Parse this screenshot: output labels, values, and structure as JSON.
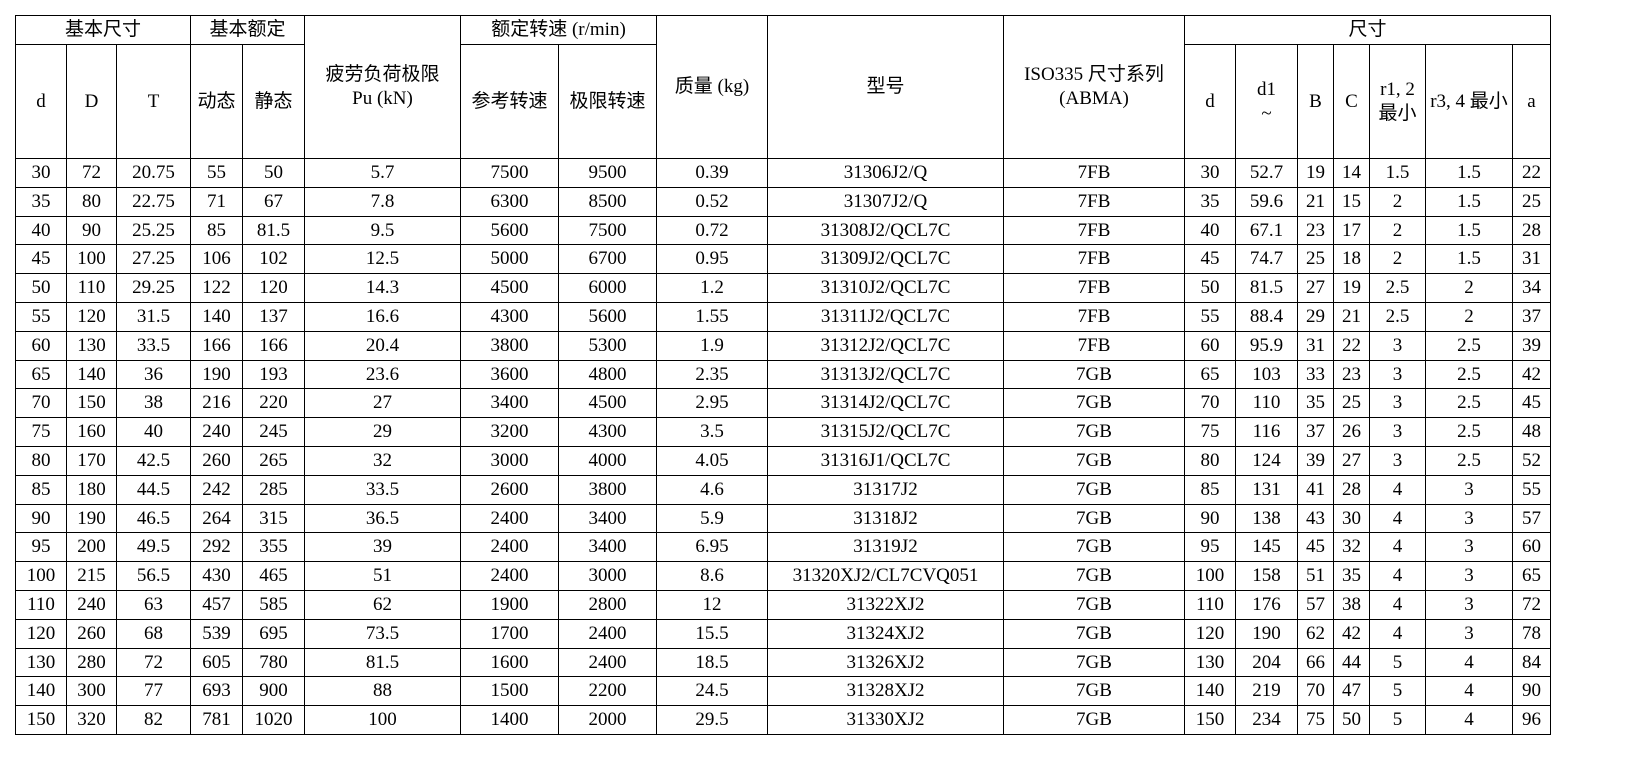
{
  "header": {
    "group_basic_dims": "基本尺寸",
    "group_basic_rating": "基本额定",
    "fatigue_limit_line1": "疲劳负荷极限",
    "fatigue_limit_line2": "Pu (kN)",
    "group_speed": "额定转速 (r/min)",
    "mass": "质量 (kg)",
    "model": "型号",
    "iso_line1": "ISO335 尺寸系列",
    "iso_line2": "(ABMA)",
    "group_dims": "尺寸",
    "d": "d",
    "D": "D",
    "T": "T",
    "dynamic": "动态",
    "static": "静态",
    "ref_speed": "参考转速",
    "limit_speed": "极限转速",
    "d2": "d",
    "d1_line1": "d1",
    "d1_line2": "~",
    "B": "B",
    "C": "C",
    "r12": "r1, 2 最小",
    "r34": "r3, 4 最小",
    "a": "a"
  },
  "rows": [
    [
      "30",
      "72",
      "20.75",
      "55",
      "50",
      "5.7",
      "7500",
      "9500",
      "0.39",
      "31306J2/Q",
      "7FB",
      "30",
      "52.7",
      "19",
      "14",
      "1.5",
      "1.5",
      "22"
    ],
    [
      "35",
      "80",
      "22.75",
      "71",
      "67",
      "7.8",
      "6300",
      "8500",
      "0.52",
      "31307J2/Q",
      "7FB",
      "35",
      "59.6",
      "21",
      "15",
      "2",
      "1.5",
      "25"
    ],
    [
      "40",
      "90",
      "25.25",
      "85",
      "81.5",
      "9.5",
      "5600",
      "7500",
      "0.72",
      "31308J2/QCL7C",
      "7FB",
      "40",
      "67.1",
      "23",
      "17",
      "2",
      "1.5",
      "28"
    ],
    [
      "45",
      "100",
      "27.25",
      "106",
      "102",
      "12.5",
      "5000",
      "6700",
      "0.95",
      "31309J2/QCL7C",
      "7FB",
      "45",
      "74.7",
      "25",
      "18",
      "2",
      "1.5",
      "31"
    ],
    [
      "50",
      "110",
      "29.25",
      "122",
      "120",
      "14.3",
      "4500",
      "6000",
      "1.2",
      "31310J2/QCL7C",
      "7FB",
      "50",
      "81.5",
      "27",
      "19",
      "2.5",
      "2",
      "34"
    ],
    [
      "55",
      "120",
      "31.5",
      "140",
      "137",
      "16.6",
      "4300",
      "5600",
      "1.55",
      "31311J2/QCL7C",
      "7FB",
      "55",
      "88.4",
      "29",
      "21",
      "2.5",
      "2",
      "37"
    ],
    [
      "60",
      "130",
      "33.5",
      "166",
      "166",
      "20.4",
      "3800",
      "5300",
      "1.9",
      "31312J2/QCL7C",
      "7FB",
      "60",
      "95.9",
      "31",
      "22",
      "3",
      "2.5",
      "39"
    ],
    [
      "65",
      "140",
      "36",
      "190",
      "193",
      "23.6",
      "3600",
      "4800",
      "2.35",
      "31313J2/QCL7C",
      "7GB",
      "65",
      "103",
      "33",
      "23",
      "3",
      "2.5",
      "42"
    ],
    [
      "70",
      "150",
      "38",
      "216",
      "220",
      "27",
      "3400",
      "4500",
      "2.95",
      "31314J2/QCL7C",
      "7GB",
      "70",
      "110",
      "35",
      "25",
      "3",
      "2.5",
      "45"
    ],
    [
      "75",
      "160",
      "40",
      "240",
      "245",
      "29",
      "3200",
      "4300",
      "3.5",
      "31315J2/QCL7C",
      "7GB",
      "75",
      "116",
      "37",
      "26",
      "3",
      "2.5",
      "48"
    ],
    [
      "80",
      "170",
      "42.5",
      "260",
      "265",
      "32",
      "3000",
      "4000",
      "4.05",
      "31316J1/QCL7C",
      "7GB",
      "80",
      "124",
      "39",
      "27",
      "3",
      "2.5",
      "52"
    ],
    [
      "85",
      "180",
      "44.5",
      "242",
      "285",
      "33.5",
      "2600",
      "3800",
      "4.6",
      "31317J2",
      "7GB",
      "85",
      "131",
      "41",
      "28",
      "4",
      "3",
      "55"
    ],
    [
      "90",
      "190",
      "46.5",
      "264",
      "315",
      "36.5",
      "2400",
      "3400",
      "5.9",
      "31318J2",
      "7GB",
      "90",
      "138",
      "43",
      "30",
      "4",
      "3",
      "57"
    ],
    [
      "95",
      "200",
      "49.5",
      "292",
      "355",
      "39",
      "2400",
      "3400",
      "6.95",
      "31319J2",
      "7GB",
      "95",
      "145",
      "45",
      "32",
      "4",
      "3",
      "60"
    ],
    [
      "100",
      "215",
      "56.5",
      "430",
      "465",
      "51",
      "2400",
      "3000",
      "8.6",
      "31320XJ2/CL7CVQ051",
      "7GB",
      "100",
      "158",
      "51",
      "35",
      "4",
      "3",
      "65"
    ],
    [
      "110",
      "240",
      "63",
      "457",
      "585",
      "62",
      "1900",
      "2800",
      "12",
      "31322XJ2",
      "7GB",
      "110",
      "176",
      "57",
      "38",
      "4",
      "3",
      "72"
    ],
    [
      "120",
      "260",
      "68",
      "539",
      "695",
      "73.5",
      "1700",
      "2400",
      "15.5",
      "31324XJ2",
      "7GB",
      "120",
      "190",
      "62",
      "42",
      "4",
      "3",
      "78"
    ],
    [
      "130",
      "280",
      "72",
      "605",
      "780",
      "81.5",
      "1600",
      "2400",
      "18.5",
      "31326XJ2",
      "7GB",
      "130",
      "204",
      "66",
      "44",
      "5",
      "4",
      "84"
    ],
    [
      "140",
      "300",
      "77",
      "693",
      "900",
      "88",
      "1500",
      "2200",
      "24.5",
      "31328XJ2",
      "7GB",
      "140",
      "219",
      "70",
      "47",
      "5",
      "4",
      "90"
    ],
    [
      "150",
      "320",
      "82",
      "781",
      "1020",
      "100",
      "1400",
      "2000",
      "29.5",
      "31330XJ2",
      "7GB",
      "150",
      "234",
      "75",
      "50",
      "5",
      "4",
      "96"
    ]
  ],
  "column_keys": [
    "d",
    "D",
    "T",
    "dynamic",
    "static",
    "fatigue_limit",
    "ref_speed",
    "limit_speed",
    "mass",
    "model",
    "iso_series",
    "dim_d",
    "d1",
    "B",
    "C",
    "r12",
    "r34",
    "a"
  ]
}
